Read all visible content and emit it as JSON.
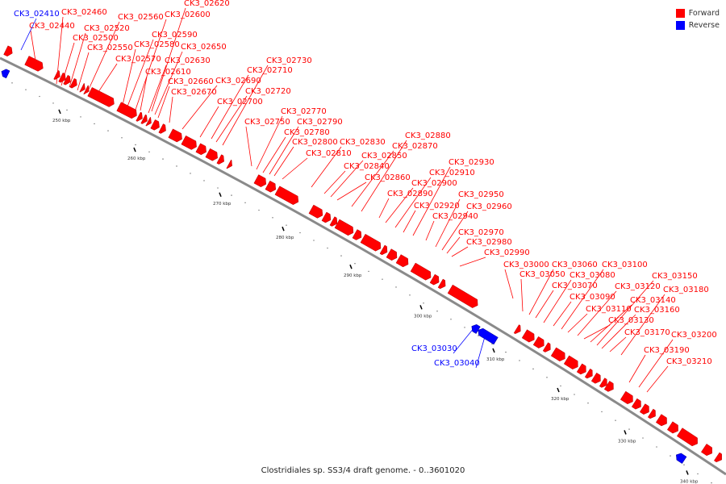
{
  "caption": "Clostridiales sp. SS3/4 draft genome. - 0..3601020",
  "legend": [
    {
      "label": "Forward",
      "color": "#ff0000"
    },
    {
      "label": "Reverse",
      "color": "#0000ff"
    }
  ],
  "scale_ticks": [
    "250 kbp",
    "260 kbp",
    "270 kbp",
    "280 kbp",
    "290 kbp",
    "300 kbp",
    "310 kbp",
    "320 kbp",
    "330 kbp",
    "340 kbp"
  ],
  "genes": {
    "forward": [
      "CK3_02440",
      "CK3_02460",
      "CK3_02500",
      "CK3_02520",
      "CK3_02550",
      "CK3_02560",
      "CK3_02570",
      "CK3_02580",
      "CK3_02590",
      "CK3_02600",
      "CK3_02610",
      "CK3_02620",
      "CK3_02630",
      "CK3_02650",
      "CK3_02660",
      "CK3_02670",
      "CK3_02690",
      "CK3_02700",
      "CK3_02710",
      "CK3_02720",
      "CK3_02730",
      "CK3_02750",
      "CK3_02770",
      "CK3_02780",
      "CK3_02790",
      "CK3_02800",
      "CK3_02810",
      "CK3_02830",
      "CK3_02840",
      "CK3_02850",
      "CK3_02860",
      "CK3_02870",
      "CK3_02880",
      "CK3_02890",
      "CK3_02900",
      "CK3_02910",
      "CK3_02920",
      "CK3_02930",
      "CK3_02940",
      "CK3_02950",
      "CK3_02960",
      "CK3_02970",
      "CK3_02980",
      "CK3_02990",
      "CK3_03000",
      "CK3_03050",
      "CK3_03060",
      "CK3_03070",
      "CK3_03080",
      "CK3_03090",
      "CK3_03100",
      "CK3_03110",
      "CK3_03120",
      "CK3_03130",
      "CK3_03140",
      "CK3_03150",
      "CK3_03160",
      "CK3_03170",
      "CK3_03180",
      "CK3_03190",
      "CK3_03200",
      "CK3_03210"
    ],
    "reverse": [
      "CK3_02410",
      "CK3_03030",
      "CK3_03040"
    ]
  }
}
